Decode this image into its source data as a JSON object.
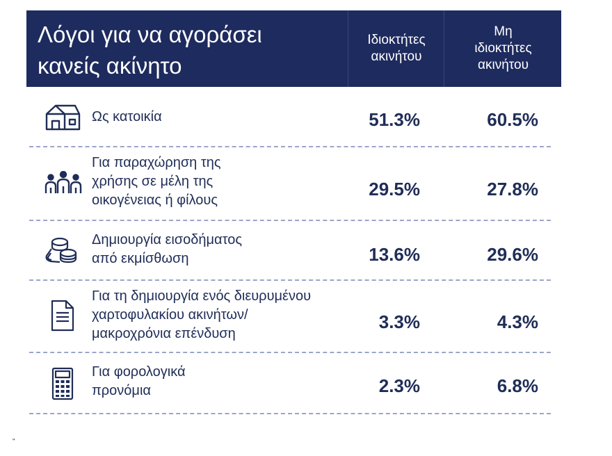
{
  "chart_data": {
    "type": "table",
    "title": "Λόγοι για να αγοράσει κανείς ακίνητο",
    "columns": [
      "Ιδιοκτήτες ακινήτου",
      "Μη ιδιοκτήτες ακινήτου"
    ],
    "rows": [
      {
        "icon": "house-icon",
        "label": "Ως κατοικία",
        "values": [
          "51.3%",
          "60.5%"
        ]
      },
      {
        "icon": "people-icon",
        "label": "Για παραχώρηση της χρήσης σε μέλη της οικογένειας ή φίλους",
        "values": [
          "29.5%",
          "27.8%"
        ]
      },
      {
        "icon": "coins-icon",
        "label": "Δημιουργία εισοδήματος από εκμίσθωση",
        "values": [
          "13.6%",
          "29.6%"
        ]
      },
      {
        "icon": "document-icon",
        "label": "Για τη δημιουργία ενός διευρυμένου χαρτοφυλακίου ακινήτων/ μακροχρόνια επένδυση",
        "values": [
          "3.3%",
          "4.3%"
        ]
      },
      {
        "icon": "calculator-icon",
        "label": "Για φορολογικά προνόμια",
        "values": [
          "2.3%",
          "6.8%"
        ]
      }
    ]
  },
  "header": {
    "title_line1": "Λόγοι για να αγοράσει",
    "title_line2": "κανείς ακίνητο",
    "col1_line1": "Ιδιοκτήτες",
    "col1_line2": "ακινήτου",
    "col2_line1": "Μη",
    "col2_line2": "ιδιοκτήτες",
    "col2_line3": "ακινήτου"
  },
  "rows": [
    {
      "lines": [
        "Ως κατοικία"
      ],
      "v1": "51.3%",
      "v2": "60.5%"
    },
    {
      "lines": [
        "Για παραχώρηση της",
        "χρήσης σε μέλη της",
        "οικογένειας ή φίλους"
      ],
      "v1": "29.5%",
      "v2": "27.8%"
    },
    {
      "lines": [
        "Δημιουργία εισοδήματος",
        "από εκμίσθωση"
      ],
      "v1": "13.6%",
      "v2": "29.6%"
    },
    {
      "lines": [
        "Για τη δημιουργία ενός διευρυμένου",
        "χαρτοφυλακίου ακινήτων/",
        "μακροχρόνια επένδυση"
      ],
      "v1": "3.3%",
      "v2": "4.3%"
    },
    {
      "lines": [
        "Για φορολογικά",
        "προνόμια"
      ],
      "v1": "2.3%",
      "v2": "6.8%"
    }
  ],
  "footnote": "\""
}
